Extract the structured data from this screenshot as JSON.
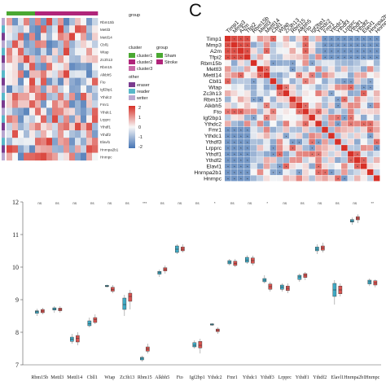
{
  "panel_c": {
    "letter": "C"
  },
  "heatmap": {
    "genes": [
      "Rbm15b",
      "Mettl3",
      "Mettl14",
      "Cbll1",
      "Wtap",
      "Zc3h13",
      "Rbm15",
      "Alkbh5",
      "Fto",
      "Igf2bp1",
      "Ythdc2",
      "Fmr1",
      "Ythdc1",
      "Lrpprc",
      "Ythdf1",
      "Ythdf2",
      "Elavl1",
      "Hnrnpa2b1",
      "Hnrnpc"
    ],
    "legend_group_title": "group",
    "legend_cluster_title": "cluster",
    "legend_clusters": [
      "cluster1",
      "cluster2",
      "cluster3"
    ],
    "legend_groups": [
      "Sham",
      "Stroke"
    ],
    "legend_other_title": "other",
    "legend_other": [
      "eraser",
      "reader",
      "writer"
    ],
    "scale_ticks": [
      "2",
      "1",
      "0",
      "-1",
      "-2"
    ],
    "colors": {
      "sham": "#4aa832",
      "stroke": "#b0257a",
      "high": "#d73027",
      "low": "#4575b4",
      "mid": "#f7f7f7"
    }
  },
  "corr": {
    "genes": [
      "Timp1",
      "Mmp3",
      "A2m",
      "Tfpi2",
      "Rbm15b",
      "Mettl3",
      "Mettl14",
      "Cbll1",
      "Wtap",
      "Zc3h13",
      "Rbm15",
      "Alkbh5",
      "Fto",
      "Igf2bp1",
      "Ythdc2",
      "Fmr1",
      "Ythdc1",
      "Ythdf3",
      "Lrpprc",
      "Ythdf1",
      "Ythdf2",
      "Elavl1",
      "Hnrnpa2b1",
      "Hnrnpc"
    ],
    "signif_symbol": "*"
  },
  "chart_data": {
    "type": "box",
    "ylim": [
      7,
      12
    ],
    "y_ticks": [
      7,
      8,
      9,
      10,
      11,
      12
    ],
    "ylabel": "",
    "series": [
      {
        "name": "Sham",
        "color": "#3fa9c4"
      },
      {
        "name": "Stroke",
        "color": "#d9534f"
      }
    ],
    "categories": [
      "Rbm15b",
      "Mettl3",
      "Mettl14",
      "Cbll1",
      "Wtap",
      "Zc3h13",
      "Rbm15",
      "Alkbh5",
      "Fto",
      "Igf2bp1",
      "Ythdc2",
      "Fmr1",
      "Ythdc1",
      "Ythdf3",
      "Lrpprc",
      "Ythdf1",
      "Ythdf2",
      "Elavl1",
      "Hnrnpa2b1",
      "Hnrnpc"
    ],
    "significance": [
      "ns",
      "ns",
      "ns",
      "ns",
      "ns",
      "ns",
      "***",
      "ns",
      "ns",
      "ns",
      "*",
      "ns",
      "ns",
      "*",
      "ns",
      "ns",
      "ns",
      "ns",
      "ns",
      "**"
    ],
    "boxes": [
      [
        [
          8.5,
          8.58,
          8.63,
          8.66,
          8.72
        ],
        [
          8.55,
          8.6,
          8.65,
          8.7,
          8.75
        ]
      ],
      [
        [
          8.6,
          8.68,
          8.72,
          8.75,
          8.8
        ],
        [
          8.6,
          8.66,
          8.7,
          8.74,
          8.8
        ]
      ],
      [
        [
          7.65,
          7.72,
          7.78,
          7.85,
          7.95
        ],
        [
          7.6,
          7.7,
          7.82,
          7.9,
          8.0
        ]
      ],
      [
        [
          8.15,
          8.2,
          8.27,
          8.35,
          8.45
        ],
        [
          8.25,
          8.3,
          8.38,
          8.45,
          8.55
        ]
      ],
      [
        [
          9.38,
          9.4,
          9.42,
          9.44,
          9.46
        ],
        [
          9.2,
          9.26,
          9.32,
          9.38,
          9.45
        ]
      ],
      [
        [
          8.5,
          8.7,
          8.85,
          9.05,
          9.15
        ],
        [
          8.7,
          8.95,
          9.1,
          9.2,
          9.3
        ]
      ],
      [
        [
          7.1,
          7.15,
          7.2,
          7.23,
          7.28
        ],
        [
          7.35,
          7.42,
          7.48,
          7.55,
          7.65
        ]
      ],
      [
        [
          9.7,
          9.78,
          9.83,
          9.87,
          9.92
        ],
        [
          9.8,
          9.88,
          9.93,
          9.98,
          10.05
        ]
      ],
      [
        [
          10.4,
          10.45,
          10.55,
          10.65,
          10.7
        ],
        [
          10.45,
          10.5,
          10.55,
          10.62,
          10.7
        ]
      ],
      [
        [
          7.5,
          7.55,
          7.6,
          7.68,
          7.75
        ],
        [
          7.35,
          7.52,
          7.6,
          7.72,
          7.8
        ]
      ],
      [
        [
          8.2,
          8.22,
          8.24,
          8.26,
          8.28
        ],
        [
          7.95,
          8.02,
          8.06,
          8.1,
          8.15
        ]
      ],
      [
        [
          10.05,
          10.1,
          10.15,
          10.2,
          10.25
        ],
        [
          10.0,
          10.05,
          10.12,
          10.18,
          10.25
        ]
      ],
      [
        [
          10.1,
          10.15,
          10.22,
          10.3,
          10.36
        ],
        [
          10.05,
          10.12,
          10.2,
          10.28,
          10.35
        ]
      ],
      [
        [
          9.5,
          9.55,
          9.6,
          9.65,
          9.75
        ],
        [
          9.25,
          9.32,
          9.4,
          9.48,
          9.55
        ]
      ],
      [
        [
          9.25,
          9.32,
          9.38,
          9.45,
          9.5
        ],
        [
          9.2,
          9.28,
          9.35,
          9.42,
          9.5
        ]
      ],
      [
        [
          9.55,
          9.62,
          9.7,
          9.75,
          9.8
        ],
        [
          9.6,
          9.68,
          9.75,
          9.8,
          9.85
        ]
      ],
      [
        [
          10.4,
          10.5,
          10.55,
          10.62,
          10.7
        ],
        [
          10.45,
          10.52,
          10.58,
          10.65,
          10.75
        ]
      ],
      [
        [
          8.85,
          9.1,
          9.3,
          9.5,
          9.6
        ],
        [
          9.1,
          9.18,
          9.3,
          9.42,
          9.5
        ]
      ],
      [
        [
          11.3,
          11.38,
          11.42,
          11.46,
          11.52
        ],
        [
          11.35,
          11.45,
          11.5,
          11.55,
          11.62
        ]
      ],
      [
        [
          9.42,
          9.48,
          9.55,
          9.6,
          9.65
        ],
        [
          9.38,
          9.45,
          9.52,
          9.58,
          9.62
        ]
      ]
    ]
  }
}
